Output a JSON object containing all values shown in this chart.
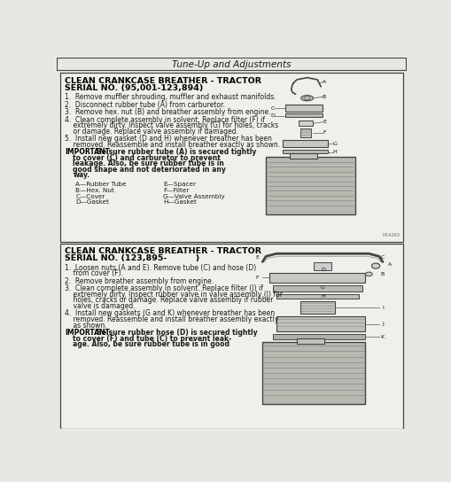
{
  "page_bg": "#e8e8e3",
  "border_color": "#444444",
  "header_text": "Tune-Up and Adjustments",
  "section1": {
    "title_line1": "CLEAN CRANKCASE BREATHER - TRACTOR",
    "title_line2": "SERIAL NO. (95,001-123,894)",
    "steps": [
      "1.  Remove muffler shrouding, muffler and exhaust manifolds.",
      "2.  Disconnect rubber tube (A) from carburetor.",
      "3.  Remove hex. nut (B) and breather assembly from engine.",
      "4.  Clean complete assembly in solvent. Replace filter (F) if\n    extremely dirty. Inspect valve assembly (G) for holes, cracks\n    or damage. Replace valve assembly if damaged.",
      "5.  Install new gasket (D and H) whenever breather has been\n    removed. Reassemble and install breather exactly as shown."
    ],
    "important_label": "IMPORTANT:",
    "important_body": "Be sure rubber tube (A) is secured tightly\n            to cover (C) and carburetor to prevent\n            leakage. Also, be sure rubber tube is in\n            good shape and not deteriorated in any\n            way.",
    "legend": [
      [
        "A—Rubber Tube",
        "E—Spacer"
      ],
      [
        "B—Hex. Nut",
        "F—Filter"
      ],
      [
        "C—Cover",
        "G—Valve Assembly"
      ],
      [
        "D—Gasket",
        "H—Gasket"
      ]
    ]
  },
  "section2": {
    "title_line1": "CLEAN CRANKCASE BREATHER - TRACTOR",
    "title_line2": "SERIAL NO. (123,895-          )",
    "steps": [
      "1.  Loosen nuts (A and E). Remove tube (C) and hose (D)\n    from cover (F).",
      "2.  Remove breather assembly from engine.",
      "3.  Clean complete assembly in solvent. Replace filter (I) if\n    extremely dirty. Inspect rubber valve in valve assembly (J) for\n    holes, cracks or damage. Replace valve assembly if rubber\n    valve is damaged.",
      "4.  Install new gaskets (G and K) whenever breather has been\n    removed. Reassemble and install breather assembly exactly\n    as shown."
    ],
    "important_label": "IMPORTANT:",
    "important_body": "Be sure rubber hose (D) is secured tightly\n            to cover (F) and tube (C) to prevent leak-\n            age. Also, be sure rubber tube is in good"
  },
  "text_color": "#1a1a1a",
  "title_color": "#000000",
  "box_bg": "#f0f0ea",
  "font_size_title": 6.8,
  "font_size_body": 5.5,
  "font_size_important": 5.5,
  "font_size_header": 7.5,
  "font_size_legend": 5.2
}
